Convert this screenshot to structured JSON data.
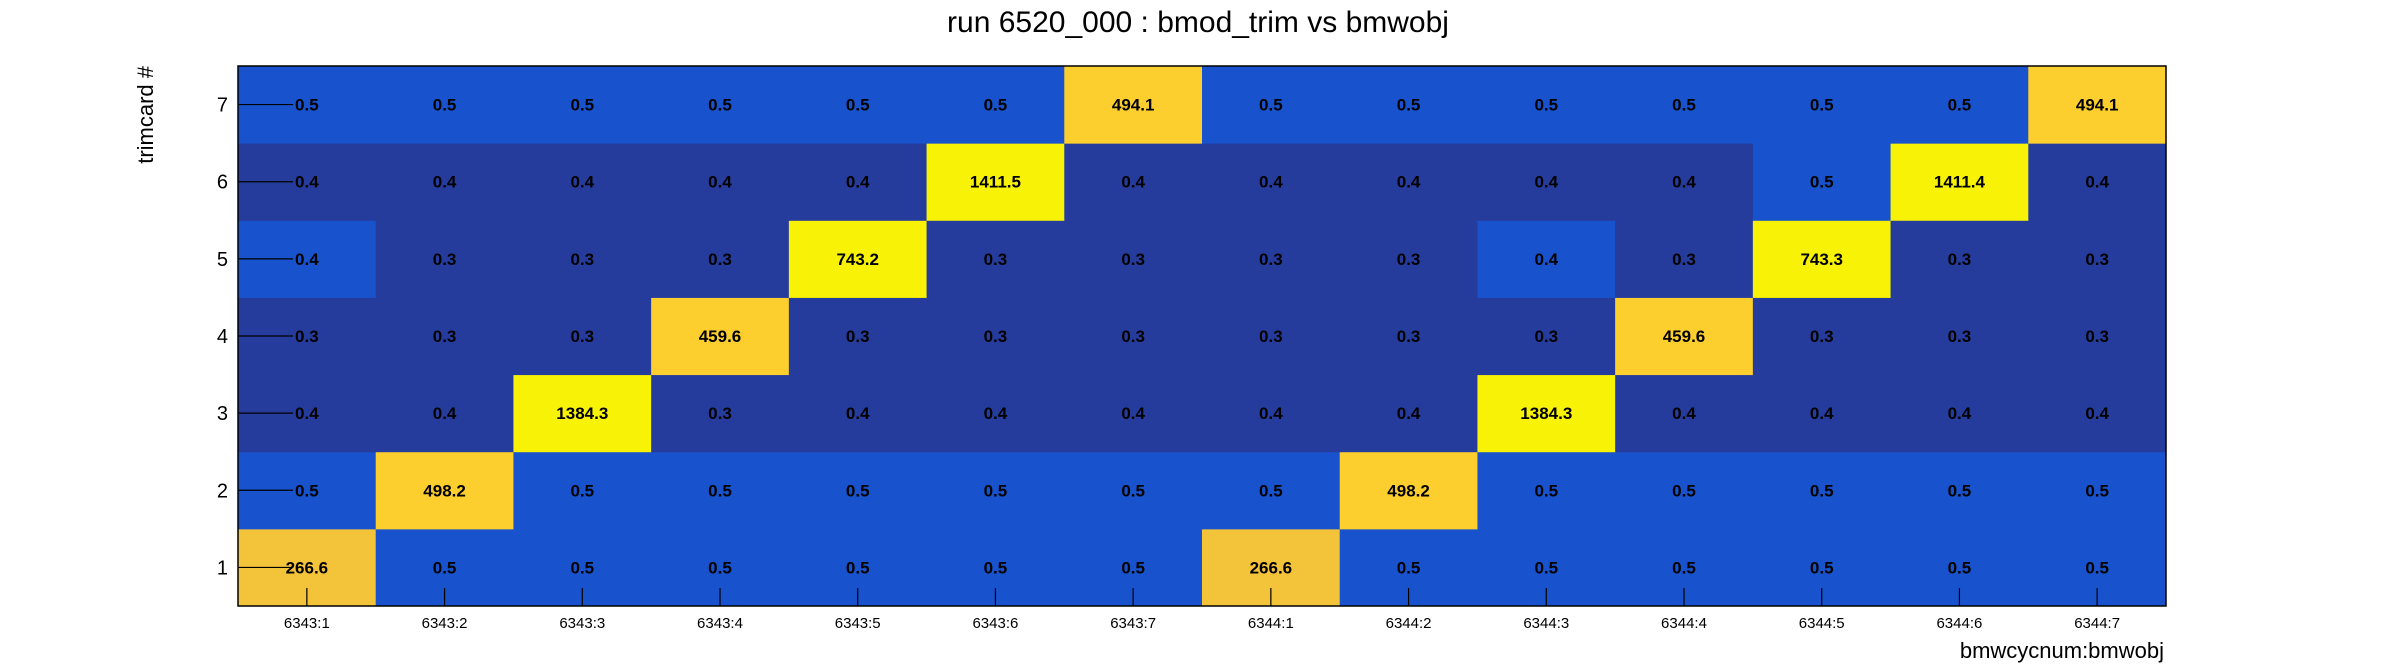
{
  "chart_data": {
    "type": "heatmap",
    "title": "run 6520_000 : bmod_trim vs bmwobj",
    "xlabel": "bmwcycnum:bmwobj",
    "ylabel": "trimcard #",
    "x_categories": [
      "6343:1",
      "6343:2",
      "6343:3",
      "6343:4",
      "6343:5",
      "6343:6",
      "6343:7",
      "6344:1",
      "6344:2",
      "6344:3",
      "6344:4",
      "6344:5",
      "6344:6",
      "6344:7"
    ],
    "y_categories": [
      "1",
      "2",
      "3",
      "4",
      "5",
      "6",
      "7"
    ],
    "values": [
      [
        266.6,
        0.5,
        0.5,
        0.5,
        0.5,
        0.5,
        0.5,
        266.6,
        0.5,
        0.5,
        0.5,
        0.5,
        0.5,
        0.5
      ],
      [
        0.5,
        498.2,
        0.5,
        0.5,
        0.5,
        0.5,
        0.5,
        0.5,
        498.2,
        0.5,
        0.5,
        0.5,
        0.5,
        0.5
      ],
      [
        0.4,
        0.4,
        1384.3,
        0.3,
        0.4,
        0.4,
        0.4,
        0.4,
        0.4,
        1384.3,
        0.4,
        0.4,
        0.4,
        0.4
      ],
      [
        0.3,
        0.3,
        0.3,
        459.6,
        0.3,
        0.3,
        0.3,
        0.3,
        0.3,
        0.3,
        459.6,
        0.3,
        0.3,
        0.3
      ],
      [
        0.4,
        0.3,
        0.3,
        0.3,
        743.2,
        0.3,
        0.3,
        0.3,
        0.3,
        0.4,
        0.3,
        743.3,
        0.3,
        0.3
      ],
      [
        0.4,
        0.4,
        0.4,
        0.4,
        0.4,
        1411.5,
        0.4,
        0.4,
        0.4,
        0.4,
        0.4,
        0.5,
        1411.4,
        0.4
      ],
      [
        0.5,
        0.5,
        0.5,
        0.5,
        0.5,
        0.5,
        494.1,
        0.5,
        0.5,
        0.5,
        0.5,
        0.5,
        0.5,
        494.1
      ]
    ],
    "colors": {
      "low_dark": "#263c9c",
      "low_mid": "#1852cc",
      "high_mid": "#f3c33a",
      "high_gold": "#fccf2e",
      "high_bright": "#f7f206"
    },
    "grid": false,
    "legend": "none"
  }
}
